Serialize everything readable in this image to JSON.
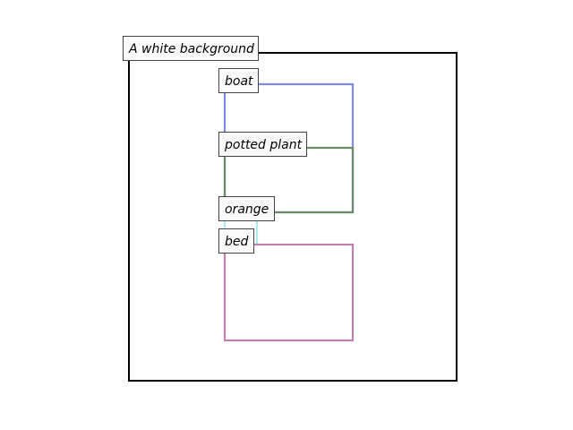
{
  "background_label": "A white background",
  "boxes": [
    {
      "label": "boat",
      "color": "#8088e8"
    },
    {
      "label": "potted plant",
      "color": "#6a8a6a"
    },
    {
      "label": "orange",
      "color": "#aee8f0"
    },
    {
      "label": "bed",
      "color": "#c080b0"
    }
  ],
  "colors": {
    "frame": "#000000",
    "label_border": "#444444",
    "label_fill": "#fafafa"
  }
}
